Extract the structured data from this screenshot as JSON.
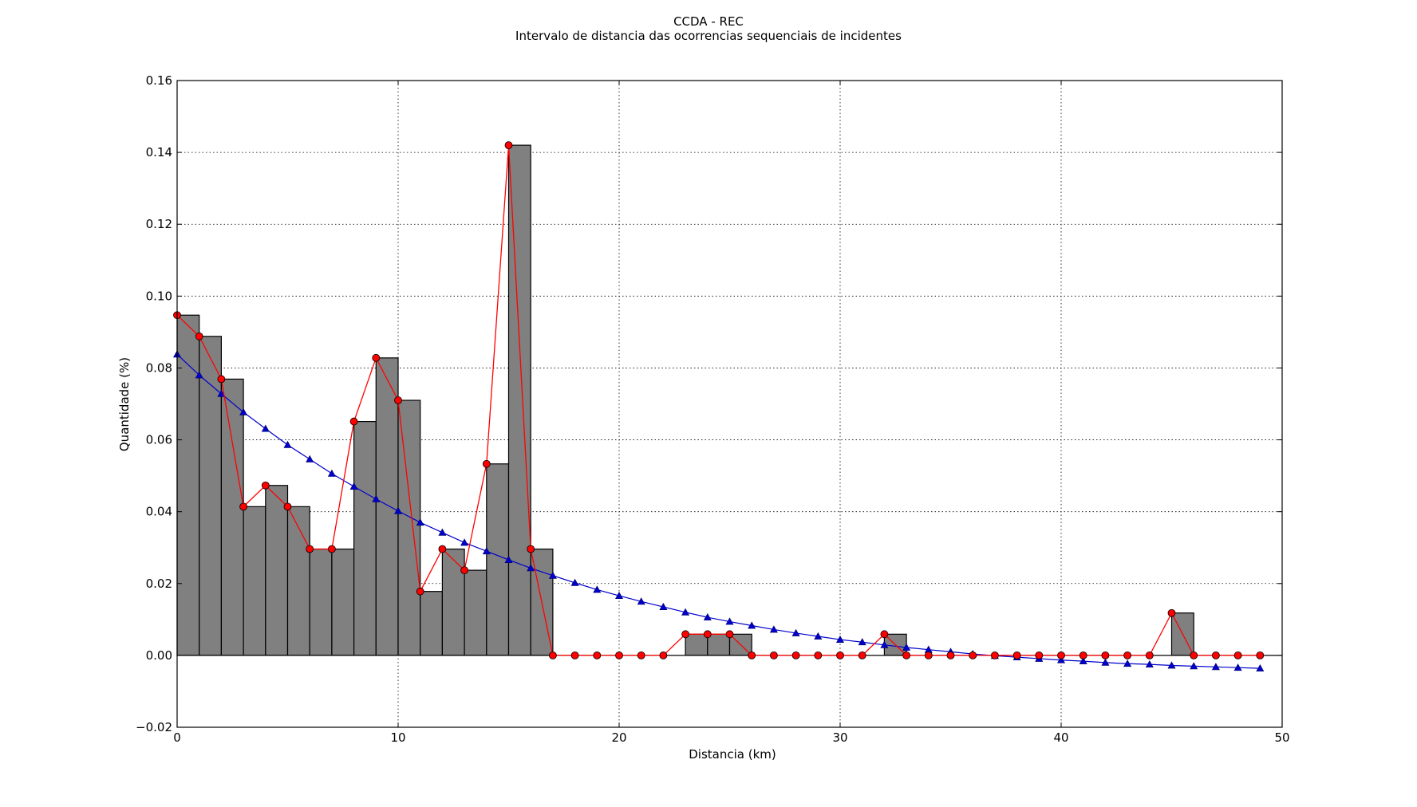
{
  "chart_data": {
    "type": "bar",
    "title": "CCDA - REC",
    "subtitle": "Intervalo de distancia das ocorrencias sequenciais de incidentes",
    "xlabel": "Distancia (km)",
    "ylabel": "Quantidade (%)",
    "xlim": [
      0,
      50
    ],
    "ylim": [
      -0.02,
      0.16
    ],
    "grid": true,
    "x_ticks": [
      0,
      10,
      20,
      30,
      40,
      50
    ],
    "x_tick_labels": [
      "0",
      "10",
      "20",
      "30",
      "40",
      "50"
    ],
    "y_ticks": [
      -0.02,
      0.0,
      0.02,
      0.04,
      0.06,
      0.08,
      0.1,
      0.12,
      0.14,
      0.16
    ],
    "y_tick_labels": [
      "−0.02",
      "0.00",
      "0.02",
      "0.04",
      "0.06",
      "0.08",
      "0.10",
      "0.12",
      "0.14",
      "0.16"
    ],
    "bar_width": 1,
    "x": [
      0,
      1,
      2,
      3,
      4,
      5,
      6,
      7,
      8,
      9,
      10,
      11,
      12,
      13,
      14,
      15,
      16,
      17,
      18,
      19,
      20,
      21,
      22,
      23,
      24,
      25,
      26,
      27,
      28,
      29,
      30,
      31,
      32,
      33,
      34,
      35,
      36,
      37,
      38,
      39,
      40,
      41,
      42,
      43,
      44,
      45,
      46,
      47,
      48,
      49
    ],
    "series": [
      {
        "type": "bar",
        "color": "#808080",
        "values": [
          0.0947,
          0.0888,
          0.0769,
          0.0414,
          0.0473,
          0.0414,
          0.0296,
          0.0296,
          0.0651,
          0.0828,
          0.071,
          0.0178,
          0.0296,
          0.0237,
          0.0533,
          0.142,
          0.0296,
          0,
          0,
          0,
          0,
          0,
          0,
          0.0059,
          0.0059,
          0.0059,
          0,
          0,
          0,
          0,
          0,
          0,
          0.0059,
          0,
          0,
          0,
          0,
          0,
          0,
          0,
          0,
          0,
          0,
          0,
          0,
          0.0118,
          0,
          0,
          0,
          0
        ]
      },
      {
        "type": "line",
        "marker": "circle",
        "color": "#ff0000",
        "values": [
          0.0947,
          0.0888,
          0.0769,
          0.0414,
          0.0473,
          0.0414,
          0.0296,
          0.0296,
          0.0651,
          0.0828,
          0.071,
          0.0178,
          0.0296,
          0.0237,
          0.0533,
          0.142,
          0.0296,
          0,
          0,
          0,
          0,
          0,
          0,
          0.0059,
          0.0059,
          0.0059,
          0,
          0,
          0,
          0,
          0,
          0,
          0.0059,
          0,
          0,
          0,
          0,
          0,
          0,
          0,
          0,
          0,
          0,
          0,
          0,
          0.0118,
          0,
          0,
          0,
          0
        ]
      },
      {
        "type": "line",
        "marker": "triangle",
        "color": "#0000cc",
        "values": [
          0.0838,
          0.078,
          0.0728,
          0.0677,
          0.0631,
          0.0586,
          0.0546,
          0.0506,
          0.047,
          0.0435,
          0.0402,
          0.037,
          0.0342,
          0.0314,
          0.029,
          0.0266,
          0.0243,
          0.0222,
          0.0202,
          0.0183,
          0.0166,
          0.015,
          0.0135,
          0.012,
          0.0106,
          0.0094,
          0.0083,
          0.0072,
          0.0062,
          0.0053,
          0.0044,
          0.0037,
          0.0029,
          0.0022,
          0.0016,
          0.001,
          0.0004,
          -0.0001,
          -0.0005,
          -0.0009,
          -0.0013,
          -0.0016,
          -0.002,
          -0.0023,
          -0.0025,
          -0.0028,
          -0.003,
          -0.0032,
          -0.0034,
          -0.0036
        ]
      }
    ]
  }
}
